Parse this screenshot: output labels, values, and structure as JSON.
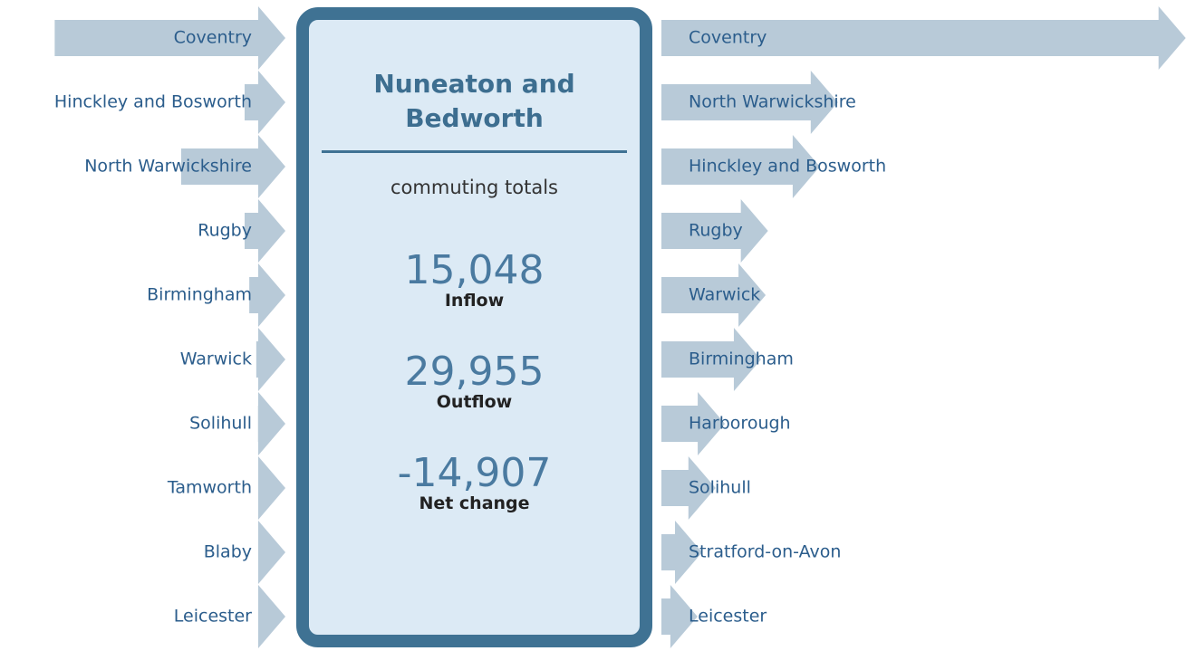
{
  "center": {
    "title": "Nuneaton and Bedworth",
    "subtitle": "commuting totals",
    "stats": [
      {
        "value": "15,048",
        "label": "Inflow"
      },
      {
        "value": "29,955",
        "label": "Outflow"
      },
      {
        "value": "-14,907",
        "label": "Net change"
      }
    ]
  },
  "inflow": {
    "names": [
      "Coventry",
      "Hinckley and Bosworth",
      "North Warwickshire",
      "Rugby",
      "Birmingham",
      "Warwick",
      "Solihull",
      "Tamworth",
      "Blaby",
      "Leicester"
    ],
    "values": [
      3960,
      700,
      1790,
      700,
      620,
      500,
      470,
      460,
      440,
      430
    ],
    "color": "#b8cad8"
  },
  "outflow": {
    "names": [
      "Coventry",
      "North Warwickshire",
      "Hinckley and Bosworth",
      "Rugby",
      "Warwick",
      "Birmingham",
      "Harborough",
      "Solihull",
      "Stratford-on-Avon",
      "Leicester"
    ],
    "values": [
      9000,
      3030,
      2720,
      1830,
      1790,
      1710,
      1090,
      930,
      700,
      620
    ],
    "color": "#b8cad8"
  }
}
